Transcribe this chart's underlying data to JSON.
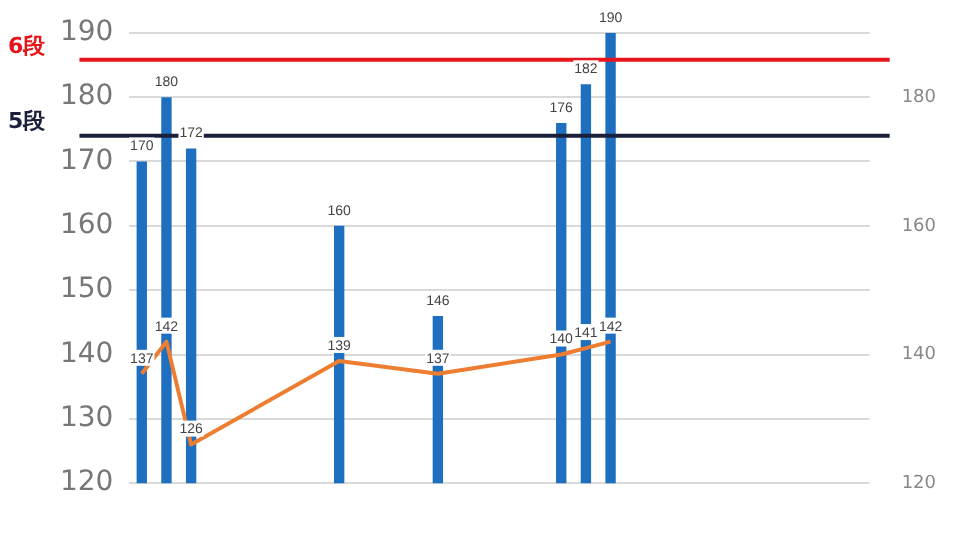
{
  "chart_data": {
    "type": "bar",
    "categories": [
      null,
      null,
      null,
      null,
      null,
      null,
      null,
      null,
      null,
      null,
      null,
      null,
      null,
      null,
      null,
      null,
      null,
      null,
      null,
      null,
      null,
      null,
      null,
      null,
      null,
      null,
      null,
      null,
      null,
      null
    ],
    "series": [
      {
        "color": "#1f6fc0",
        "values": [
          170,
          180,
          172,
          null,
          null,
          null,
          null,
          null,
          160,
          null,
          null,
          null,
          146,
          null,
          null,
          null,
          null,
          176,
          182,
          190,
          null,
          null,
          null,
          null,
          null,
          null,
          null,
          null,
          null,
          null
        ]
      },
      {
        "type": "line",
        "color": "#ed7d31",
        "marker": "none",
        "values": [
          137,
          142,
          126,
          null,
          null,
          null,
          null,
          null,
          139,
          null,
          null,
          null,
          137,
          null,
          null,
          null,
          null,
          140,
          141,
          142,
          null,
          null,
          null,
          null,
          null,
          null,
          null,
          null,
          null,
          null
        ]
      }
    ],
    "ylim": [
      120,
      190
    ],
    "yticks": [
      120,
      130,
      140,
      150,
      160,
      170,
      180,
      190
    ],
    "y2lim": [
      120,
      190
    ],
    "y2ticks": [
      120,
      140,
      160,
      180
    ],
    "ref_lines": [
      {
        "axis": "y",
        "value": 185.8,
        "label": "6段",
        "color": "#e8141c"
      },
      {
        "axis": "y",
        "value": 174,
        "label": "5段",
        "color": "#1a1f3c"
      }
    ],
    "grid": "y",
    "legend": false,
    "data_labels": true
  }
}
